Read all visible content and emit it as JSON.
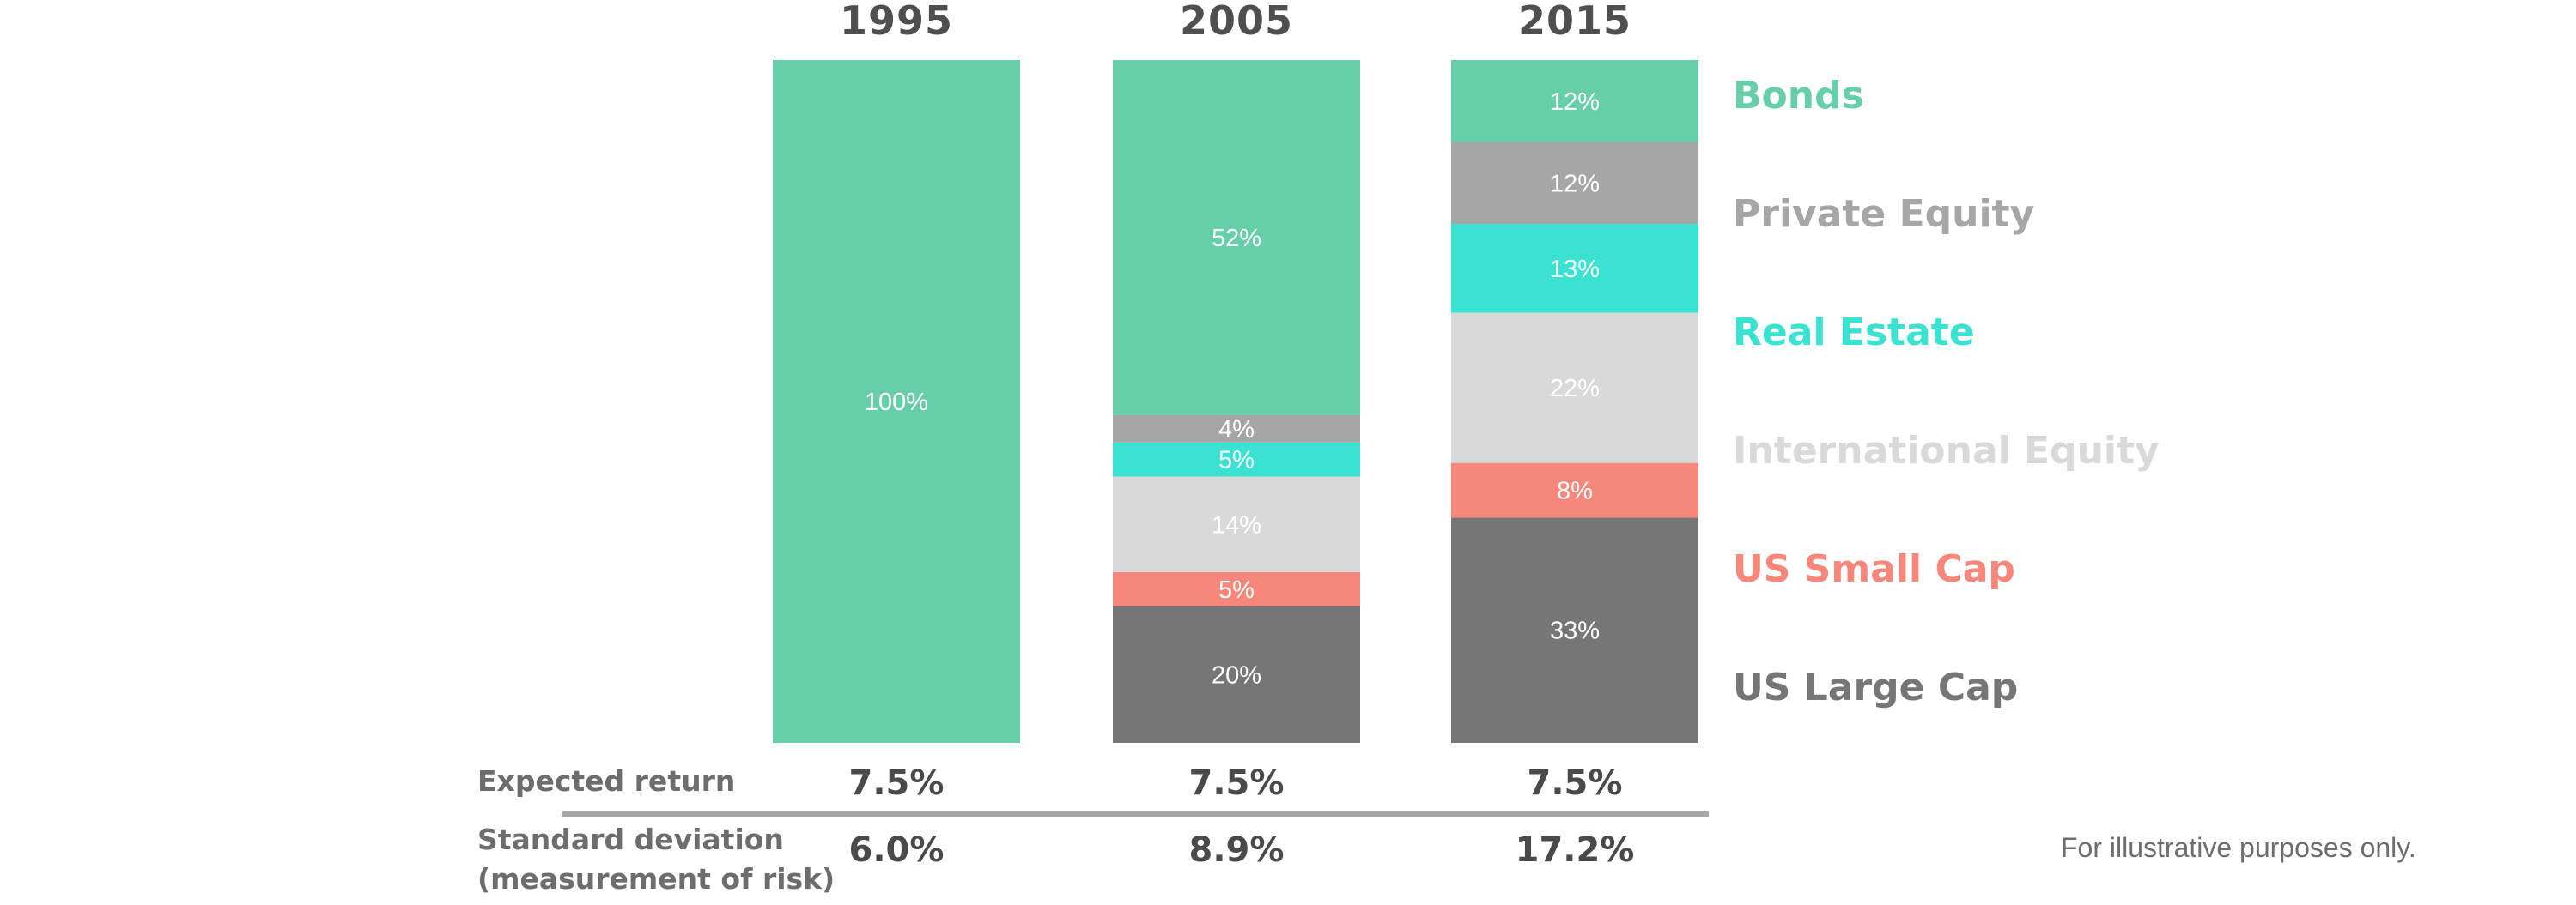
{
  "chart_data": {
    "type": "bar",
    "stacked": true,
    "title": "",
    "xlabel": "",
    "ylabel": "",
    "ylim": [
      0,
      100
    ],
    "categories": [
      "1995",
      "2005",
      "2015"
    ],
    "series": [
      {
        "name": "US Large Cap",
        "color": "#767676",
        "values": [
          0,
          20,
          33
        ],
        "labels": [
          "",
          "20%",
          "33%"
        ]
      },
      {
        "name": "US Small Cap",
        "color": "#f6877a",
        "values": [
          0,
          5,
          8
        ],
        "labels": [
          "",
          "5%",
          "8%"
        ]
      },
      {
        "name": "International Equity",
        "color": "#d9d9d9",
        "values": [
          0,
          14,
          22
        ],
        "labels": [
          "",
          "14%",
          "22%"
        ]
      },
      {
        "name": "Real Estate",
        "color": "#3ae2d2",
        "values": [
          0,
          5,
          13
        ],
        "labels": [
          "",
          "5%",
          "13%"
        ]
      },
      {
        "name": "Private Equity",
        "color": "#a6a6a6",
        "values": [
          0,
          4,
          12
        ],
        "labels": [
          "",
          "4%",
          "12%"
        ]
      },
      {
        "name": "Bonds",
        "color": "#66cea9",
        "values": [
          100,
          52,
          12
        ],
        "labels": [
          "100%",
          "52%",
          "12%"
        ]
      }
    ],
    "legend": {
      "placement": "right",
      "order": [
        "Bonds",
        "Private Equity",
        "Real Estate",
        "International Equity",
        "US Small Cap",
        "US Large Cap"
      ]
    },
    "rows": [
      {
        "label_lines": [
          "Expected return"
        ],
        "values": [
          "7.5%",
          "7.5%",
          "7.5%"
        ]
      },
      {
        "label_lines": [
          "Standard deviation",
          "(measurement of risk)"
        ],
        "values": [
          "6.0%",
          "8.9%",
          "17.2%"
        ]
      }
    ],
    "divider_color": "#a8a8a8",
    "footnote": "For illustrative purposes only."
  }
}
